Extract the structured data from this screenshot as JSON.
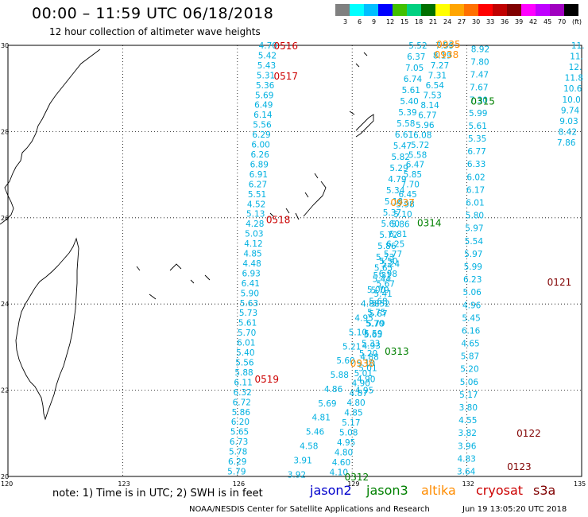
{
  "header": {
    "title": "00:00 – 11:59 UTC 06/18/2018",
    "subtitle": "12 hour collection of altimeter wave heights"
  },
  "scale": {
    "colors": [
      "#808080",
      "#00ffff",
      "#00bfff",
      "#0000ff",
      "#40c000",
      "#00d080",
      "#007000",
      "#ffff00",
      "#ffa500",
      "#ff7000",
      "#ff0000",
      "#c00000",
      "#800000",
      "#ff00ff",
      "#c000ff",
      "#a000c0",
      "#000000"
    ],
    "labels": [
      "3",
      "6",
      "9",
      "12",
      "15",
      "18",
      "21",
      "24",
      "27",
      "30",
      "33",
      "36",
      "39",
      "42",
      "45",
      "70",
      "(ft)"
    ]
  },
  "axes": {
    "lon_labels": [
      "120",
      "123",
      "126",
      "129",
      "132",
      "135"
    ],
    "lat_labels": [
      "30",
      "28",
      "26",
      "24",
      "22",
      "20"
    ]
  },
  "tracks": {
    "colors": {
      "jason2": "#0000cc",
      "jason3": "#008000",
      "altika": "#ff8c00",
      "cryosat": "#cc0000",
      "s3a": "#800000",
      "default": "#00b0e0"
    },
    "labels": [
      {
        "text": "0516",
        "sat": "cryosat",
        "lon": 126.95,
        "lat": 29.98
      },
      {
        "text": "0517",
        "sat": "cryosat",
        "lon": 126.95,
        "lat": 29.28
      },
      {
        "text": "0518",
        "sat": "cryosat",
        "lon": 126.75,
        "lat": 25.95
      },
      {
        "text": "0519",
        "sat": "cryosat",
        "lon": 126.45,
        "lat": 22.25
      },
      {
        "text": "0935",
        "sat": "altika",
        "lon": 131.2,
        "lat": 30.02
      },
      {
        "text": "0938",
        "sat": "altika",
        "lon": 131.15,
        "lat": 29.78
      },
      {
        "text": "0937",
        "sat": "altika",
        "lon": 130.0,
        "lat": 26.35
      },
      {
        "text": "0938",
        "sat": "altika",
        "lon": 128.95,
        "lat": 22.62
      },
      {
        "text": "0315",
        "sat": "jason3",
        "lon": 132.1,
        "lat": 28.7
      },
      {
        "text": "0314",
        "sat": "jason3",
        "lon": 130.7,
        "lat": 25.88
      },
      {
        "text": "0313",
        "sat": "jason3",
        "lon": 129.85,
        "lat": 22.9
      },
      {
        "text": "0312",
        "sat": "jason3",
        "lon": 128.8,
        "lat": 19.98
      },
      {
        "text": "0121",
        "sat": "s3a",
        "lon": 134.1,
        "lat": 24.5
      },
      {
        "text": "0122",
        "sat": "s3a",
        "lon": 133.3,
        "lat": 21.0
      },
      {
        "text": "0123",
        "sat": "s3a",
        "lon": 133.05,
        "lat": 20.22
      }
    ],
    "passes": [
      {
        "lon0": 126.8,
        "lat0": 30.0,
        "lon1": 125.98,
        "lat1": 20.12,
        "values": [
          "4.70",
          "5.42",
          "5.43",
          "5.31",
          "5.36",
          "5.69",
          "6.49",
          "6.14",
          "5.56",
          "6.29",
          "6.00",
          "6.26",
          "6.89",
          "6.91",
          "6.27",
          "5.51",
          "4.52",
          "5.13",
          "4.28",
          "5.03",
          "4.12",
          "4.85",
          "4.48",
          "6.93",
          "6.41",
          "5.90",
          "5.63",
          "5.73",
          "5.61",
          "5.70",
          "6.01",
          "5.40",
          "5.56",
          "5.88",
          "6.11",
          "6.32",
          "6.72",
          "5.86",
          "6.20",
          "5.65",
          "6.73",
          "5.78",
          "6.29",
          "5.79"
        ]
      },
      {
        "lon0": 130.72,
        "lat0": 30.0,
        "lon1": 129.32,
        "lat1": 22.0,
        "values": [
          "5.52",
          "6.37",
          "7.05",
          "6.74",
          "5.61",
          "5.40",
          "5.39",
          "5.58",
          "6.61",
          "5.47",
          "5.82",
          "5.29",
          "4.79",
          "5.34",
          "5.18",
          "5.37",
          "5.60",
          "5.72",
          "5.86",
          "5.73",
          "5.65",
          "5.44",
          "5.79",
          "5.68",
          "5.75",
          "5.70",
          "5.65",
          "4.93",
          "4.88",
          "5.01",
          "4.90",
          "4.95"
        ]
      },
      {
        "lon0": 131.42,
        "lat0": 30.0,
        "lon1": 128.65,
        "lat1": 20.1,
        "values": [
          "7.59",
          "8.19",
          "7.27",
          "7.31",
          "6.54",
          "7.53",
          "8.14",
          "6.77",
          "5.96",
          "6.08",
          "5.72",
          "5.58",
          "6.47",
          "5.85",
          "7.70",
          "6.45",
          "5.98",
          "5.10",
          "5.86",
          "6.81",
          "6.25",
          "5.77",
          "5.24",
          "6.98",
          "5.67",
          "5.41",
          "5.52",
          "5.67",
          "5.79",
          "5.59",
          "5.33",
          "5.20",
          "5.10",
          "5.01",
          "4.90",
          "4.87",
          "4.80",
          "4.85",
          "5.17",
          "5.08",
          "4.95",
          "4.80",
          "4.60",
          "4.10"
        ]
      },
      {
        "lon0": 129.95,
        "lat0": 25.0,
        "lon1": 127.55,
        "lat1": 20.05,
        "values": [
          "5.50",
          "5.31",
          "5.00",
          "4.88",
          "4.95",
          "5.10",
          "5.21",
          "5.60",
          "5.88",
          "4.86",
          "5.69",
          "4.81",
          "5.46",
          "4.58",
          "3.91",
          "3.92"
        ]
      },
      {
        "lon0": 132.35,
        "lat0": 29.92,
        "lon1": 131.98,
        "lat1": 20.12,
        "values": [
          "8.92",
          "7.80",
          "7.47",
          "7.67",
          "7.30",
          "5.99",
          "5.61",
          "5.35",
          "6.77",
          "6.33",
          "6.02",
          "6.17",
          "6.01",
          "5.80",
          "5.97",
          "5.54",
          "5.97",
          "5.99",
          "6.23",
          "5.06",
          "4.96",
          "5.45",
          "6.16",
          "4.65",
          "5.87",
          "5.20",
          "5.06",
          "5.17",
          "3.80",
          "4.55",
          "3.82",
          "3.96",
          "4.83",
          "3.64"
        ]
      },
      {
        "lon0": 134.9,
        "lat0": 30.0,
        "lon1": 134.6,
        "lat1": 27.75,
        "values": [
          "11.",
          "11.",
          "12.",
          "11.8",
          "10.6",
          "10.0",
          "9.74",
          "9.03",
          "8.42",
          "7.86"
        ]
      }
    ]
  },
  "footer": {
    "note": "note:  1) Time is in UTC; 2) SWH is in feet",
    "satellites": [
      {
        "name": "jason2",
        "color": "#0000cc"
      },
      {
        "name": "jason3",
        "color": "#008000"
      },
      {
        "name": "altika",
        "color": "#ff8c00"
      },
      {
        "name": "cryosat",
        "color": "#cc0000"
      },
      {
        "name": "s3a",
        "color": "#800000"
      }
    ],
    "credit": "NOAA/NESDIS Center for Satellite Applications and Research",
    "date": "Jun 19 13:05:20 UTC 2018"
  }
}
